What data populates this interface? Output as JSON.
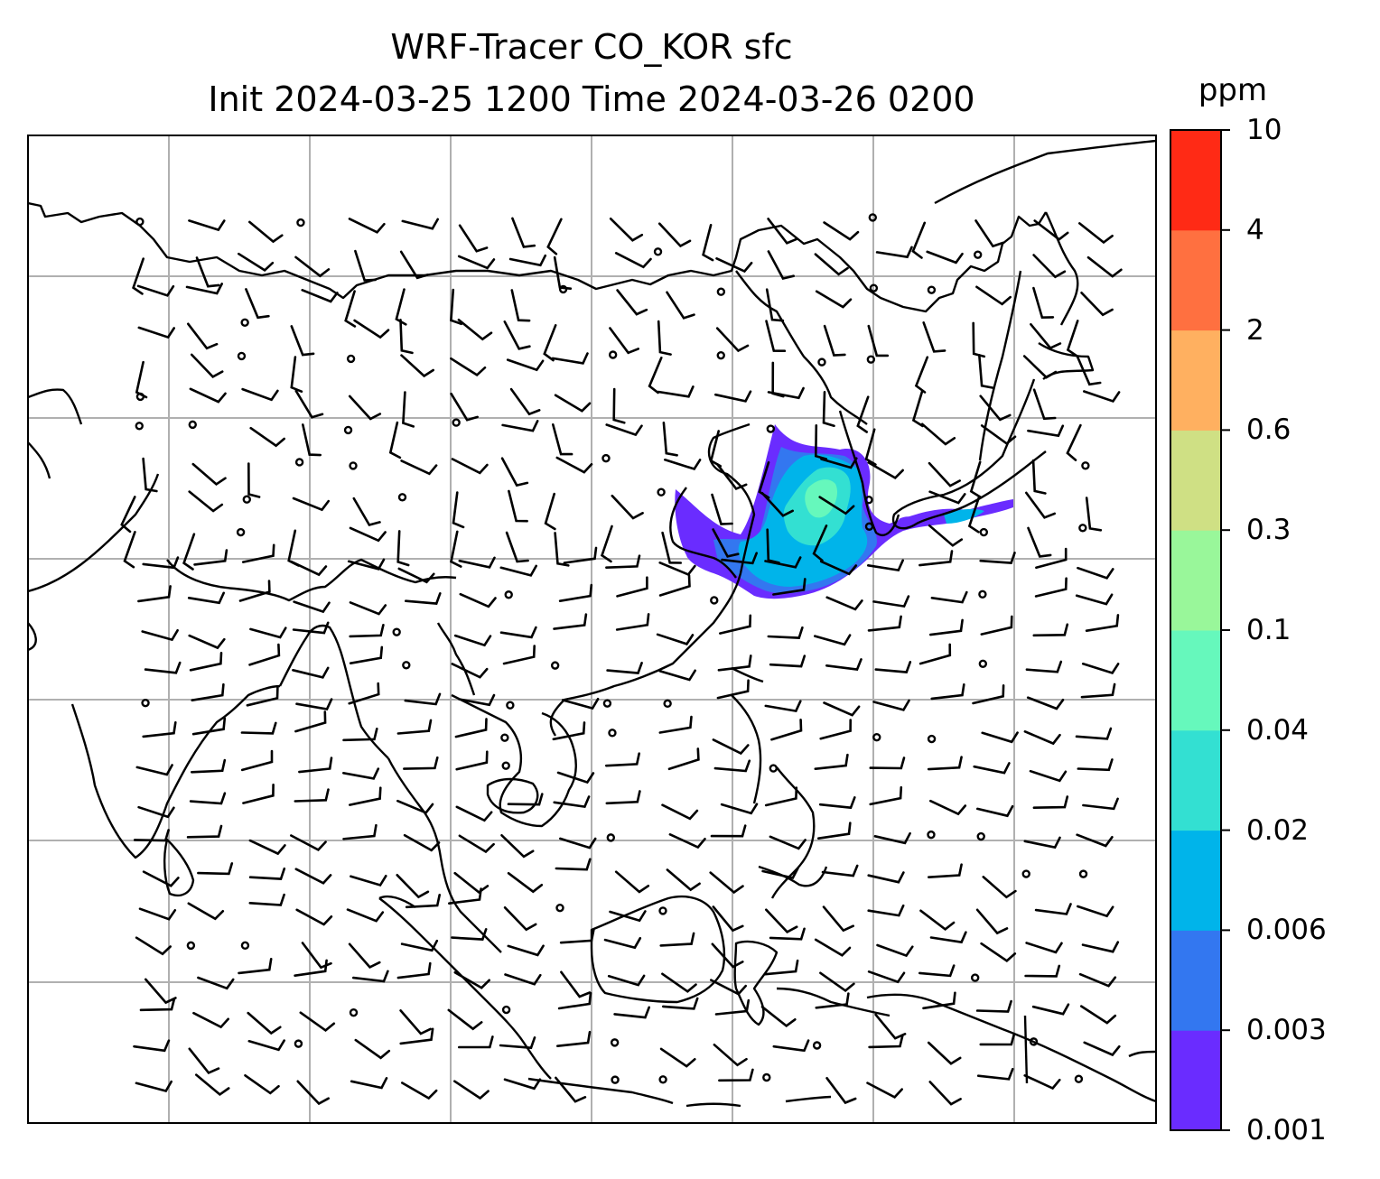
{
  "title": {
    "line1": "WRF-Tracer CO_KOR sfc",
    "line2": "Init 2024-03-25 1200 Time 2024-03-26 0200"
  },
  "colorbar": {
    "unit": "ppm",
    "levels": [
      "0.001",
      "0.003",
      "0.006",
      "0.02",
      "0.04",
      "0.1",
      "0.3",
      "0.6",
      "2",
      "4",
      "10"
    ],
    "colors": [
      "#6a2cff",
      "#3377f0",
      "#00b4ea",
      "#33e0d2",
      "#66f8bc",
      "#99f79a",
      "#cfe084",
      "#ffb060",
      "#ff7040",
      "#ff2a15"
    ]
  },
  "map": {
    "region": "East / Southeast Asia",
    "gridlines": true,
    "plume_source": "Korea",
    "wind_barbs": true
  }
}
